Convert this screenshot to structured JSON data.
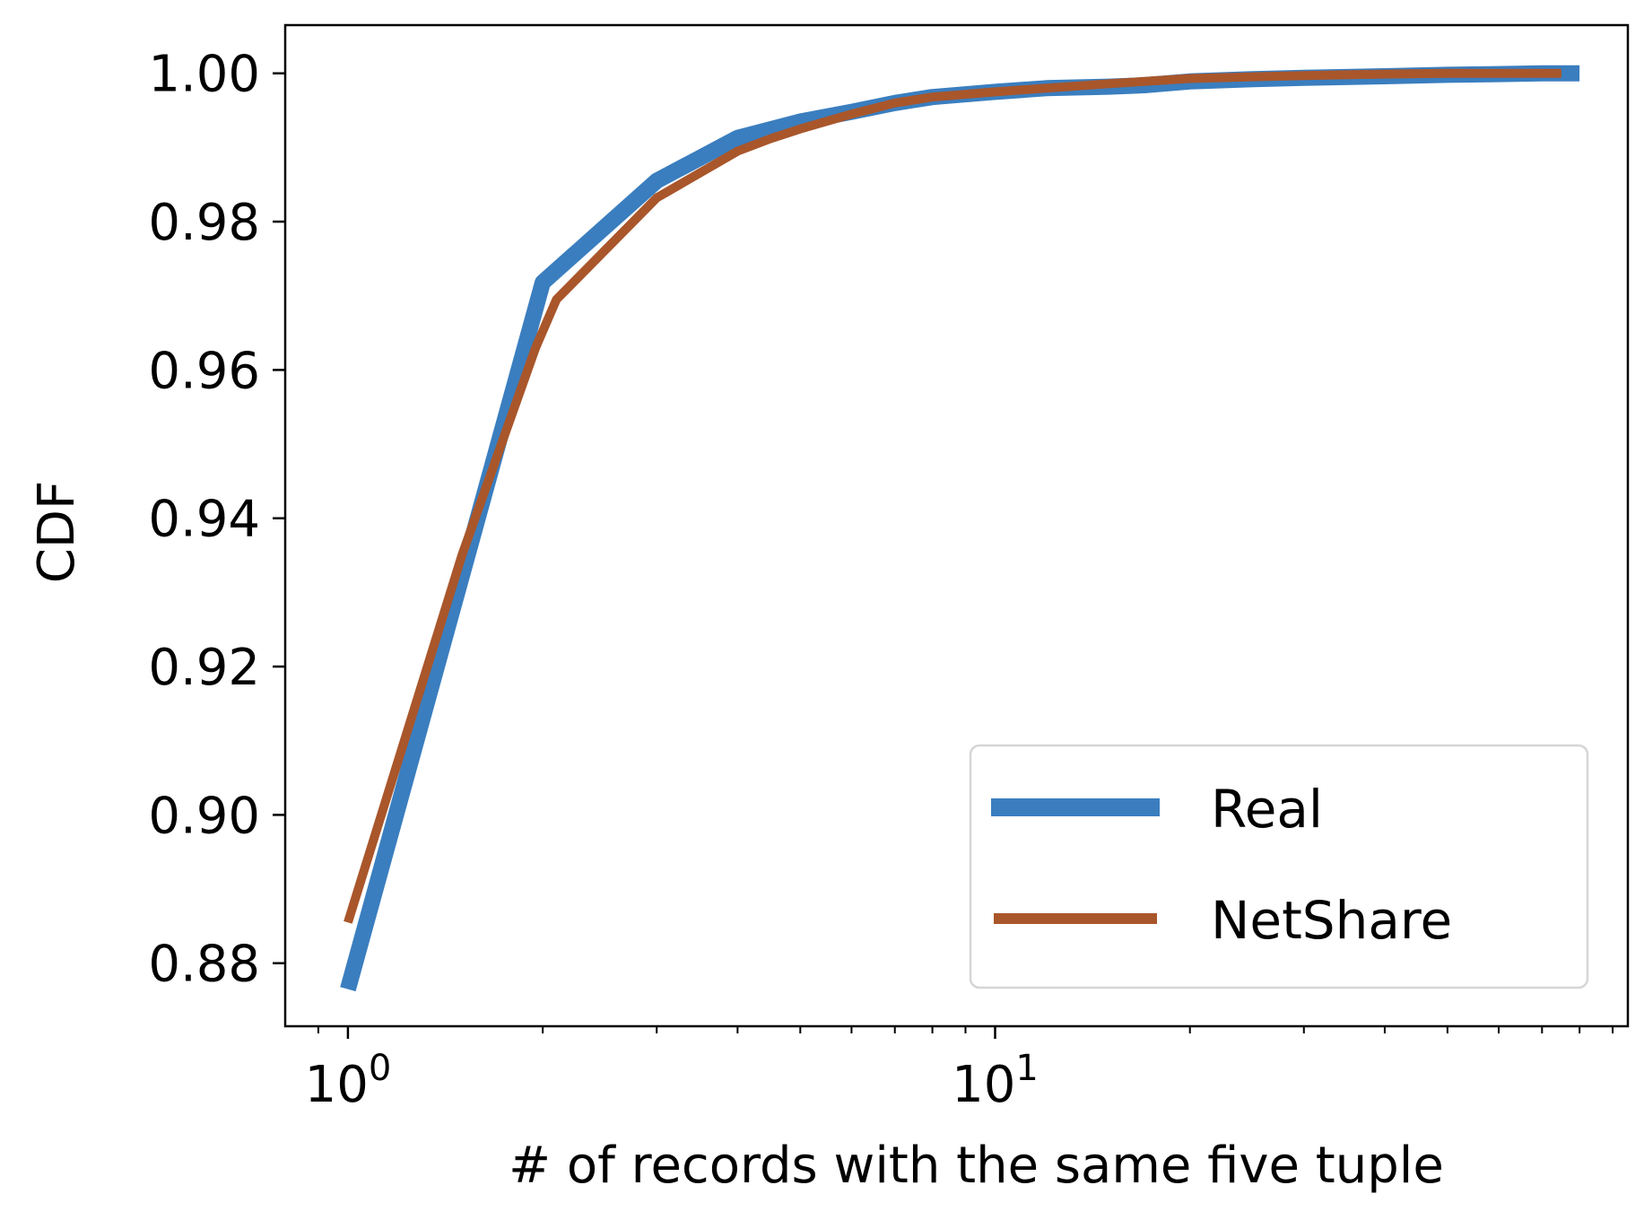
{
  "chart_data": {
    "type": "line",
    "title": "",
    "xlabel": "# of records with the same five tuple",
    "ylabel": "CDF",
    "xscale": "log",
    "xlim": [
      0.8,
      95
    ],
    "ylim": [
      0.8715,
      1.0065
    ],
    "grid": false,
    "legend_position": "lower-right",
    "x_ticks": [
      {
        "value": 1,
        "base": "10",
        "exponent": "0"
      },
      {
        "value": 10,
        "base": "10",
        "exponent": "1"
      }
    ],
    "y_ticks": [
      {
        "value": 0.88,
        "label": "0.88"
      },
      {
        "value": 0.9,
        "label": "0.90"
      },
      {
        "value": 0.92,
        "label": "0.92"
      },
      {
        "value": 0.94,
        "label": "0.94"
      },
      {
        "value": 0.96,
        "label": "0.96"
      },
      {
        "value": 0.98,
        "label": "0.98"
      },
      {
        "value": 1.0,
        "label": "1.00"
      }
    ],
    "series": [
      {
        "name": "Real",
        "color": "#3a7ebf",
        "linewidth": 18,
        "x": [
          1,
          2,
          3,
          4,
          5,
          6,
          7,
          8,
          10,
          12,
          15,
          17,
          20,
          25,
          30,
          40,
          50,
          60,
          70,
          80
        ],
        "y": [
          0.8765,
          0.9718,
          0.9855,
          0.9913,
          0.9935,
          0.9948,
          0.996,
          0.9968,
          0.9975,
          0.998,
          0.9982,
          0.9984,
          0.9989,
          0.9992,
          0.9994,
          0.9996,
          0.9998,
          0.9999,
          1.0,
          1.0
        ]
      },
      {
        "name": "NetShare",
        "color": "#a9562b",
        "linewidth": 10,
        "x": [
          1,
          1.5,
          1.95,
          2.1,
          3,
          4,
          4.5,
          5,
          6,
          7,
          8,
          10,
          12,
          15,
          20,
          30,
          40,
          50,
          60,
          75
        ],
        "y": [
          0.8855,
          0.935,
          0.963,
          0.9695,
          0.9832,
          0.9895,
          0.9912,
          0.9925,
          0.9945,
          0.996,
          0.9968,
          0.9975,
          0.998,
          0.9986,
          0.9993,
          0.9997,
          0.9999,
          1.0,
          1.0,
          1.0
        ]
      }
    ]
  }
}
